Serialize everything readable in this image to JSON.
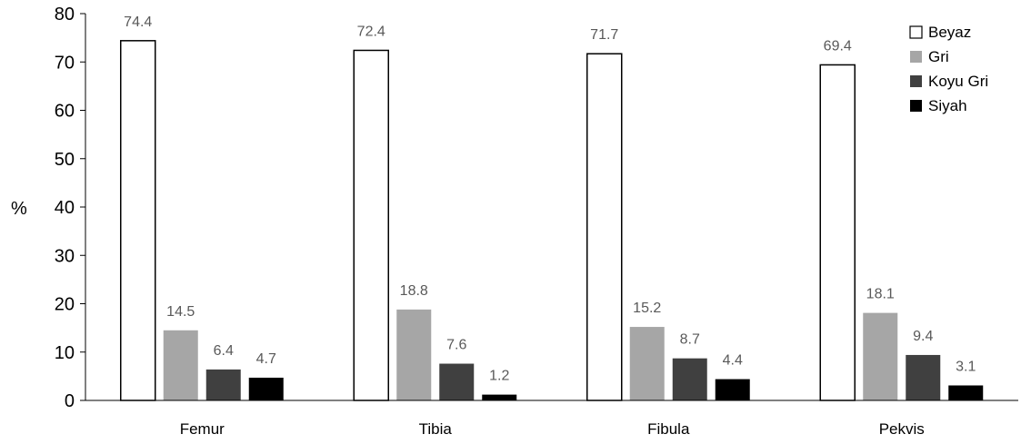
{
  "chart_data": {
    "type": "bar",
    "title": "",
    "xlabel": "",
    "ylabel": "%",
    "ylim": [
      0,
      80
    ],
    "y_ticks": [
      "0",
      "10",
      "20",
      "30",
      "40",
      "50",
      "60",
      "70",
      "80"
    ],
    "categories": [
      "Femur",
      "Tibia",
      "Fibula",
      "Pekvis"
    ],
    "series": [
      {
        "name": "Beyaz",
        "color": "#ffffff",
        "values": [
          74.4,
          72.4,
          71.7,
          69.4
        ],
        "labels": [
          "74.4",
          "72.4",
          "71.7",
          "69.4"
        ]
      },
      {
        "name": "Gri",
        "color": "#a6a6a6",
        "values": [
          14.5,
          18.8,
          15.2,
          18.1
        ],
        "labels": [
          "14.5",
          "18.8",
          "15.2",
          "18.1"
        ]
      },
      {
        "name": "Koyu Gri",
        "color": "#404040",
        "values": [
          6.4,
          7.6,
          8.7,
          9.4
        ],
        "labels": [
          "6.4",
          "7.6",
          "8.7",
          "9.4"
        ]
      },
      {
        "name": "Siyah",
        "color": "#000000",
        "values": [
          4.7,
          1.2,
          4.4,
          3.1
        ],
        "labels": [
          "4.7",
          "1.2",
          "4.4",
          "3.1"
        ]
      }
    ],
    "grid": false,
    "legend_position": "top-right"
  }
}
